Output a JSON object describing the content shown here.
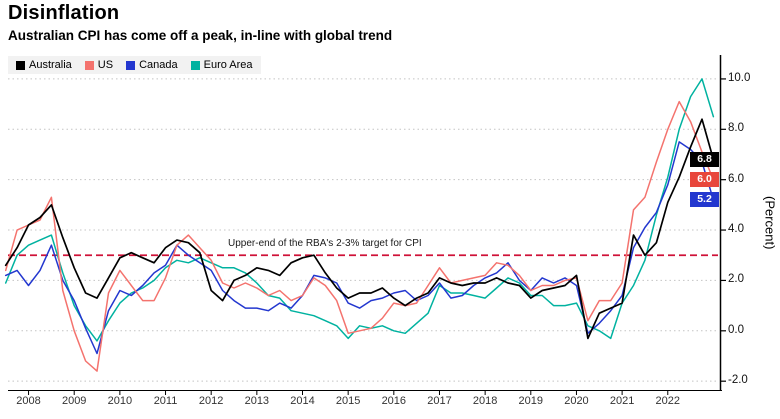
{
  "chart_data": {
    "type": "line",
    "title": "Disinflation",
    "subtitle": "Australian CPI has come off a peak, in-line with global trend",
    "ylabel": "(Percent)",
    "x_unit": "year",
    "x_start": 2007.5,
    "x_step": 0.25,
    "xlim": [
      2007.55,
      2023.1
    ],
    "ylim": [
      -2.35,
      10.95
    ],
    "grid": "horizontal-dotted",
    "legend_position": "top-left",
    "xticks": [
      2008,
      2009,
      2010,
      2011,
      2012,
      2013,
      2014,
      2015,
      2016,
      2017,
      2018,
      2019,
      2020,
      2021,
      2022
    ],
    "yticks": [
      {
        "value": 10.0,
        "label": "10.0"
      },
      {
        "value": 8.0,
        "label": "8.0"
      },
      {
        "value": 6.0,
        "label": "6.0"
      },
      {
        "value": 4.0,
        "label": "4.0"
      },
      {
        "value": 2.0,
        "label": "2.0"
      },
      {
        "value": 0.0,
        "label": "0.0"
      },
      {
        "value": -2.0,
        "label": "-2.0"
      }
    ],
    "target_line": {
      "value": 3.0,
      "label": "Upper-end of the RBA's 2-3% target for CPI",
      "color": "#cf1238",
      "style": "dashed"
    },
    "series": [
      {
        "name": "Australia",
        "color": "#000000",
        "values": [
          2.6,
          3.3,
          4.2,
          4.5,
          5.0,
          3.7,
          2.5,
          1.5,
          1.3,
          2.1,
          2.9,
          3.1,
          2.9,
          2.7,
          3.3,
          3.6,
          3.5,
          3.1,
          1.6,
          1.2,
          2.0,
          2.2,
          2.5,
          2.4,
          2.2,
          2.7,
          2.9,
          3.0,
          2.3,
          1.7,
          1.3,
          1.5,
          1.5,
          1.7,
          1.3,
          1.0,
          1.3,
          1.5,
          2.1,
          1.9,
          1.8,
          1.9,
          1.9,
          2.1,
          1.9,
          1.8,
          1.3,
          1.6,
          1.7,
          1.8,
          2.2,
          -0.3,
          0.7,
          0.9,
          1.1,
          3.8,
          3.0,
          3.5,
          5.1,
          6.1,
          7.3,
          8.4,
          6.8
        ]
      },
      {
        "name": "US",
        "color": "#f4736e",
        "values": [
          2.4,
          4.0,
          4.2,
          4.4,
          5.3,
          1.6,
          0.0,
          -1.2,
          -1.6,
          1.5,
          2.4,
          1.8,
          1.2,
          1.2,
          2.1,
          3.4,
          3.8,
          3.3,
          2.8,
          1.9,
          1.7,
          1.9,
          1.7,
          1.4,
          1.6,
          1.2,
          1.4,
          2.1,
          1.8,
          1.2,
          -0.1,
          0.0,
          0.1,
          0.5,
          1.1,
          1.0,
          1.1,
          1.8,
          2.5,
          1.9,
          2.0,
          2.1,
          2.2,
          2.7,
          2.6,
          2.2,
          1.6,
          1.8,
          1.8,
          2.0,
          2.1,
          0.4,
          1.2,
          1.2,
          1.9,
          4.8,
          5.3,
          6.7,
          8.0,
          9.1,
          8.3,
          7.1,
          6.0
        ]
      },
      {
        "name": "Canada",
        "color": "#2337cf",
        "values": [
          2.2,
          2.4,
          1.8,
          2.4,
          3.4,
          2.0,
          1.2,
          0.1,
          -0.9,
          0.8,
          1.6,
          1.4,
          1.8,
          2.3,
          2.6,
          3.4,
          3.0,
          2.7,
          2.4,
          1.6,
          1.2,
          0.9,
          0.9,
          0.8,
          1.1,
          0.9,
          1.4,
          2.2,
          2.1,
          1.9,
          1.1,
          0.9,
          1.2,
          1.3,
          1.5,
          1.6,
          1.2,
          1.4,
          1.9,
          1.3,
          1.4,
          1.8,
          2.1,
          2.3,
          2.7,
          2.0,
          1.6,
          2.1,
          1.9,
          2.1,
          1.8,
          -0.1,
          0.3,
          0.8,
          1.4,
          3.3,
          4.1,
          4.7,
          5.8,
          7.5,
          7.2,
          6.7,
          5.2
        ]
      },
      {
        "name": "Euro Area",
        "color": "#00b2a0",
        "values": [
          1.9,
          3.0,
          3.4,
          3.6,
          3.8,
          2.3,
          1.0,
          0.2,
          -0.4,
          0.4,
          1.1,
          1.5,
          1.7,
          2.0,
          2.5,
          2.8,
          2.7,
          2.9,
          2.7,
          2.5,
          2.5,
          2.3,
          1.9,
          1.4,
          1.3,
          0.8,
          0.7,
          0.6,
          0.4,
          0.2,
          -0.3,
          0.2,
          0.1,
          0.2,
          0.0,
          -0.1,
          0.3,
          0.7,
          1.8,
          1.5,
          1.5,
          1.4,
          1.3,
          1.7,
          2.1,
          1.9,
          1.4,
          1.4,
          1.0,
          1.0,
          1.1,
          0.2,
          0.0,
          -0.3,
          1.1,
          1.8,
          2.8,
          4.6,
          6.1,
          8.0,
          9.3,
          10.0,
          8.5
        ]
      }
    ],
    "end_labels": [
      {
        "series": "Australia",
        "label": "6.8",
        "value": 6.8,
        "color": "#000000"
      },
      {
        "series": "US",
        "label": "6.0",
        "value": 6.0,
        "color": "#e8463c"
      },
      {
        "series": "Canada",
        "label": "5.2",
        "value": 5.2,
        "color": "#2337cf"
      }
    ]
  }
}
